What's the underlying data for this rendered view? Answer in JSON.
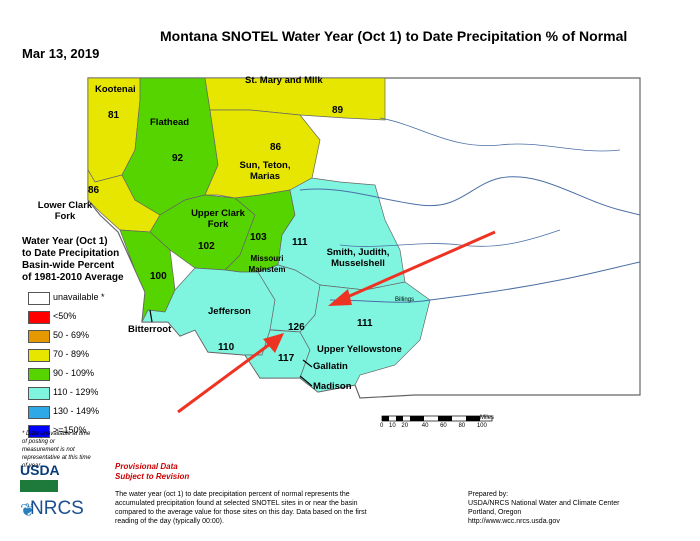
{
  "title": "Montana SNOTEL Water Year (Oct 1) to Date Precipitation % of Normal",
  "date": "Mar 13, 2019",
  "legend": {
    "title_lines": [
      "Water Year (Oct 1)",
      "to Date Precipitation",
      "Basin-wide Percent",
      "of 1981-2010 Average"
    ],
    "items": [
      {
        "label": "unavailable *",
        "color": "#ffffff"
      },
      {
        "label": "<50%",
        "color": "#ff0000"
      },
      {
        "label": "50 - 69%",
        "color": "#e69800"
      },
      {
        "label": "70 - 89%",
        "color": "#e6e600"
      },
      {
        "label": "90 - 109%",
        "color": "#55d400"
      },
      {
        "label": "110 - 129%",
        "color": "#7ff5e0"
      },
      {
        "label": "130 - 149%",
        "color": "#2ea8e6"
      },
      {
        "label": ">=150%",
        "color": "#0000ff"
      }
    ],
    "footnote": "* Data unavailable at time of posting or measurement is not representative at this time of year"
  },
  "basins": [
    {
      "name": "Kootenai",
      "pct": "81",
      "category": "70 - 89%"
    },
    {
      "name": "Flathead",
      "pct": "92",
      "category": "90 - 109%"
    },
    {
      "name": "St. Mary and Milk",
      "pct": "89",
      "category": "70 - 89%"
    },
    {
      "name": "Sun, Teton, Marias",
      "pct": "86",
      "category": "70 - 89%"
    },
    {
      "name": "Lower Clark Fork",
      "pct": "86",
      "category": "70 - 89%"
    },
    {
      "name": "Upper Clark Fork",
      "pct": "102",
      "category": "90 - 109%"
    },
    {
      "name": "Missouri Mainstem",
      "pct": "103",
      "category": "90 - 109%"
    },
    {
      "name": "Smith, Judith, Musselshell",
      "pct": "111",
      "category": "110 - 129%"
    },
    {
      "name": "Bitterroot",
      "pct": "100",
      "category": "90 - 109%"
    },
    {
      "name": "Jefferson",
      "pct": "110",
      "category": "110 - 129%"
    },
    {
      "name": "Gallatin",
      "pct": "126",
      "category": "110 - 129%"
    },
    {
      "name": "Madison",
      "pct": "117",
      "category": "110 - 129%"
    },
    {
      "name": "Upper Yellowstone",
      "pct": "111",
      "category": "110 - 129%"
    }
  ],
  "scale": {
    "ticks": [
      "0",
      "10",
      "20",
      "40",
      "60",
      "80",
      "100"
    ],
    "unit": "Miles"
  },
  "provisional": [
    "Provisional Data",
    "Subject to Revision"
  ],
  "description": "The water year (oct 1) to date precipitation percent of normal represents the accumulated precipitation found at selected SNOTEL sites in or near the basin compared to the average value for those sites on this day. Data based on the first reading of the day (typically 00:00).",
  "prepared": [
    "Prepared by:",
    "USDA/NRCS National Water and Climate Center",
    "Portland, Oregon",
    "http://www.wcc.nrcs.usda.gov"
  ],
  "logos": {
    "usda": "USDA",
    "nrcs": "NRCS"
  },
  "city_labels": [
    "Billings"
  ]
}
